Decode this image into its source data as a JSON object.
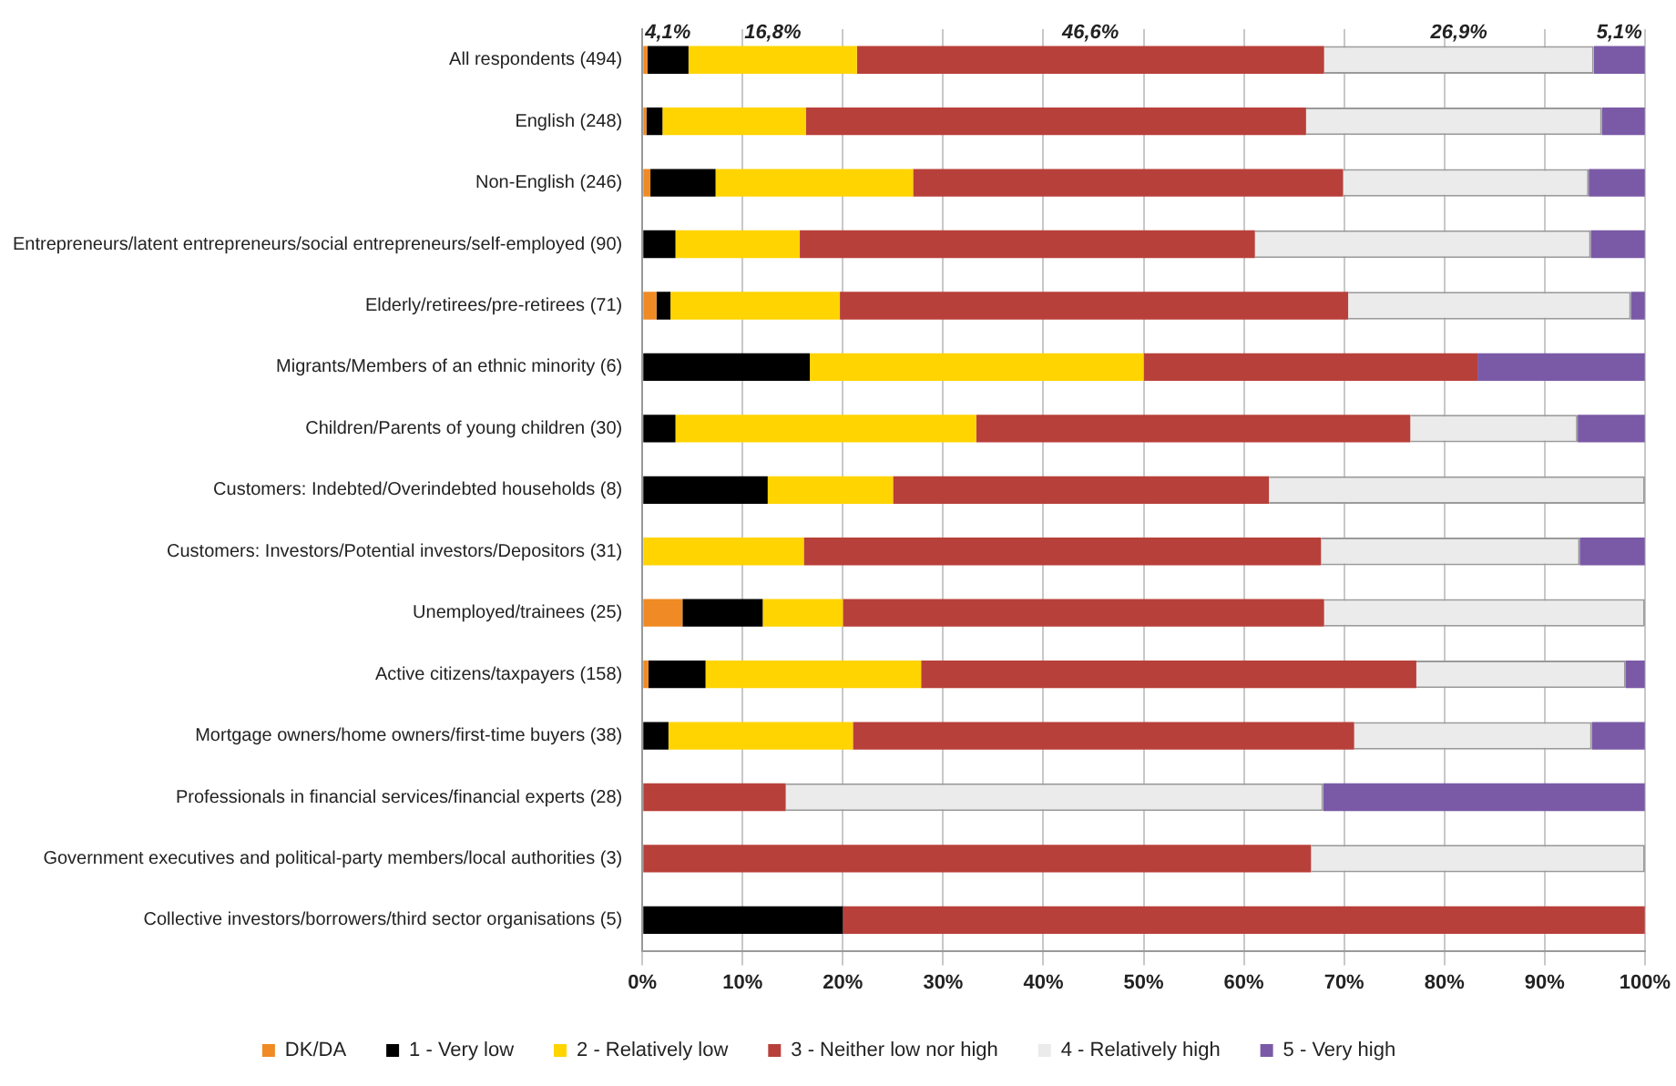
{
  "chart_data": {
    "type": "bar",
    "orientation": "horizontal",
    "stacked": true,
    "categories": [
      "All respondents (494)",
      "English (248)",
      "Non-English (246)",
      "Entrepreneurs/latent entrepreneurs/social entrepreneurs/self-employed (90)",
      "Elderly/retirees/pre-retirees (71)",
      "Migrants/Members of an ethnic minority (6)",
      "Children/Parents of young children (30)",
      "Customers: Indebted/Overindebted households (8)",
      "Customers: Investors/Potential investors/Depositors (31)",
      "Unemployed/trainees (25)",
      "Active citizens/taxpayers (158)",
      "Mortgage owners/home owners/first-time buyers (38)",
      "Professionals in financial services/financial experts (28)",
      "Government executives and political-party members/local authorities (3)",
      "Collective investors/borrowers/third sector organisations (5)"
    ],
    "series": [
      {
        "name": "DK/DA",
        "color": "#f08a24",
        "values": [
          0.5,
          0.4,
          0.8,
          0,
          1.4,
          0,
          0,
          0,
          0,
          4.0,
          0.6,
          0,
          0,
          0,
          0
        ],
        "value_labels": [
          null,
          null,
          null,
          null,
          null,
          null,
          null,
          null,
          null,
          null,
          null,
          null,
          null,
          null,
          null
        ]
      },
      {
        "name": "1 - Very low",
        "color": "#000000",
        "values": [
          4.1,
          1.6,
          6.5,
          3.3,
          1.4,
          16.7,
          3.3,
          12.5,
          0,
          8.0,
          5.7,
          2.6,
          0,
          0,
          20
        ],
        "value_labels": [
          "4,1%",
          null,
          null,
          null,
          null,
          null,
          null,
          null,
          null,
          null,
          null,
          null,
          null,
          null,
          null
        ]
      },
      {
        "name": "2 - Relatively low",
        "color": "#ffd400",
        "values": [
          16.8,
          14.3,
          19.7,
          12.4,
          16.9,
          33.3,
          30.0,
          12.5,
          16.1,
          8.0,
          21.5,
          18.4,
          0,
          0,
          0
        ],
        "value_labels": [
          "16,8%",
          null,
          null,
          null,
          null,
          null,
          null,
          null,
          null,
          null,
          null,
          null,
          null,
          null,
          null
        ]
      },
      {
        "name": "3 - Neither low nor high",
        "color": "#b8403a",
        "values": [
          46.6,
          49.9,
          42.9,
          45.4,
          50.7,
          33.3,
          43.3,
          37.5,
          51.6,
          48.0,
          49.4,
          50.0,
          14.3,
          66.7,
          80
        ],
        "value_labels": [
          "46,6%",
          null,
          null,
          null,
          null,
          null,
          null,
          null,
          null,
          null,
          null,
          null,
          null,
          null,
          null
        ]
      },
      {
        "name": "4 - Relatively high",
        "color": "#ebebeb",
        "values": [
          26.9,
          29.5,
          24.5,
          33.5,
          28.2,
          0,
          16.7,
          37.5,
          25.8,
          32.0,
          20.9,
          23.7,
          53.6,
          33.3,
          0
        ],
        "value_labels": [
          "26,9%",
          null,
          null,
          null,
          null,
          null,
          null,
          null,
          null,
          null,
          null,
          null,
          null,
          null,
          null
        ]
      },
      {
        "name": "5 - Very high",
        "color": "#7a5aa6",
        "values": [
          5.1,
          4.3,
          5.6,
          5.4,
          1.4,
          16.7,
          6.7,
          0,
          6.5,
          0,
          1.9,
          5.3,
          32.1,
          0,
          0
        ],
        "value_labels": [
          "5,1%",
          null,
          null,
          null,
          null,
          null,
          null,
          null,
          null,
          null,
          null,
          null,
          null,
          null,
          null
        ]
      }
    ],
    "xlim": [
      0,
      100
    ],
    "xticks": [
      {
        "value": 0,
        "label": "0%"
      },
      {
        "value": 10,
        "label": "10%"
      },
      {
        "value": 20,
        "label": "20%"
      },
      {
        "value": 30,
        "label": "30%"
      },
      {
        "value": 40,
        "label": "40%"
      },
      {
        "value": 50,
        "label": "50%"
      },
      {
        "value": 60,
        "label": "60%"
      },
      {
        "value": 70,
        "label": "70%"
      },
      {
        "value": 80,
        "label": "80%"
      },
      {
        "value": 90,
        "label": "90%"
      },
      {
        "value": 100,
        "label": "100%"
      }
    ],
    "grid": "x",
    "legend": "bottom"
  }
}
